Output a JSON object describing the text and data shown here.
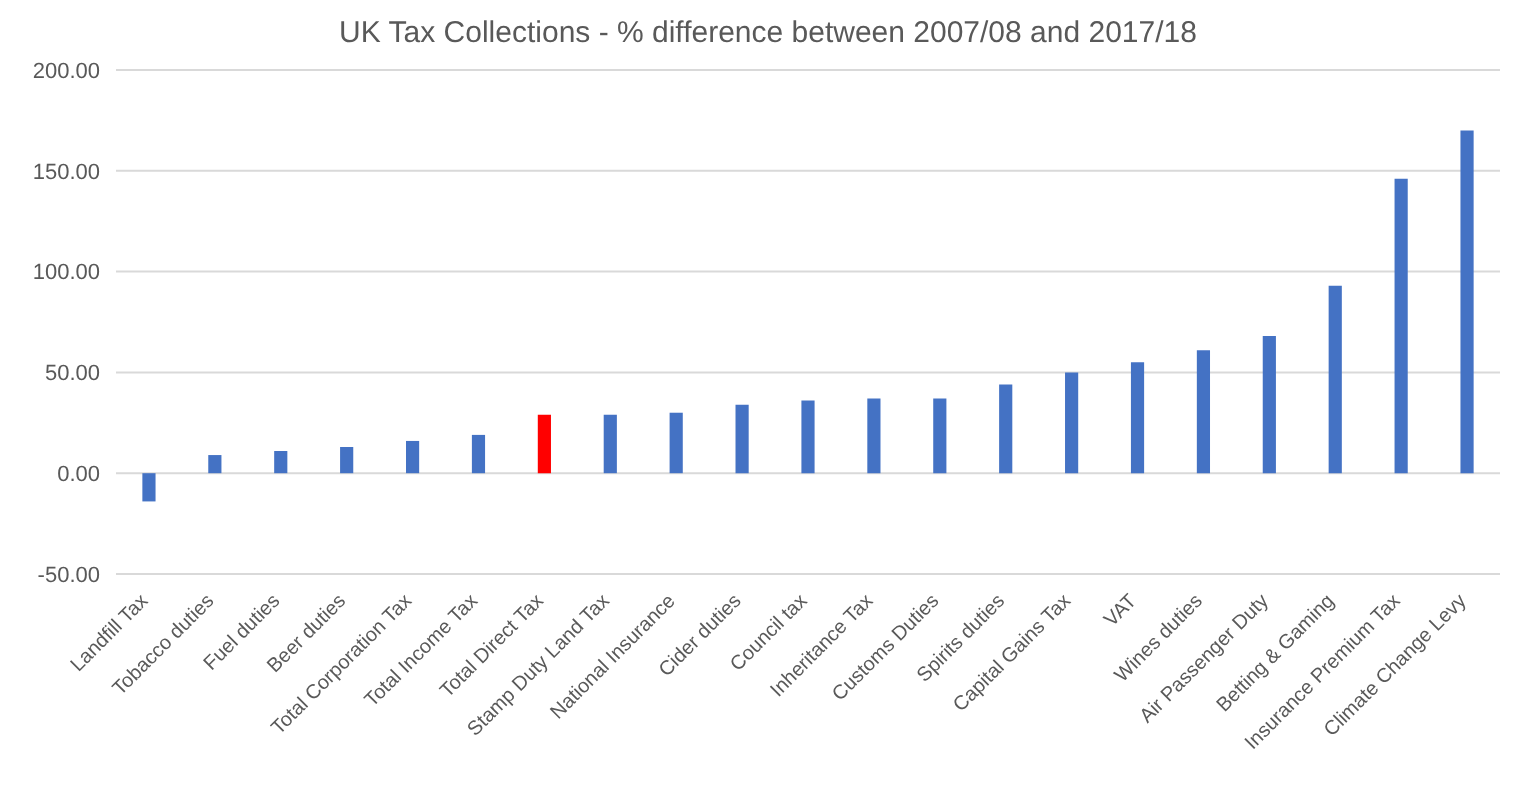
{
  "chart_data": {
    "type": "bar",
    "title": "UK Tax Collections - % difference between 2007/08 and 2017/18",
    "categories": [
      "Landfill Tax",
      "Tobacco duties",
      "Fuel duties",
      "Beer duties",
      "Total Corporation Tax",
      "Total Income Tax",
      "Total Direct Tax",
      "Stamp Duty Land Tax",
      "National Insurance",
      "Cider duties",
      "Council tax",
      "Inheritance Tax",
      "Customs Duties",
      "Spirits duties",
      "Capital Gains Tax",
      "VAT",
      "Wines duties",
      "Air Passenger Duty",
      "Betting & Gaming",
      "Insurance Premium Tax",
      "Climate Change Levy"
    ],
    "values": [
      -14,
      9,
      11,
      13,
      16,
      19,
      29,
      29,
      30,
      34,
      36,
      37,
      37,
      44,
      50,
      55,
      61,
      68,
      93,
      146,
      170
    ],
    "colors": [
      "#4472c4",
      "#4472c4",
      "#4472c4",
      "#4472c4",
      "#4472c4",
      "#4472c4",
      "#ff0000",
      "#4472c4",
      "#4472c4",
      "#4472c4",
      "#4472c4",
      "#4472c4",
      "#4472c4",
      "#4472c4",
      "#4472c4",
      "#4472c4",
      "#4472c4",
      "#4472c4",
      "#4472c4",
      "#4472c4",
      "#4472c4"
    ],
    "ylim": [
      -50,
      200
    ],
    "yticks": [
      {
        "value": -50,
        "label": "-50.00"
      },
      {
        "value": 0,
        "label": "0.00"
      },
      {
        "value": 50,
        "label": "50.00"
      },
      {
        "value": 100,
        "label": "100.00"
      },
      {
        "value": 150,
        "label": "150.00"
      },
      {
        "value": 200,
        "label": "200.00"
      }
    ],
    "grid": "y"
  }
}
